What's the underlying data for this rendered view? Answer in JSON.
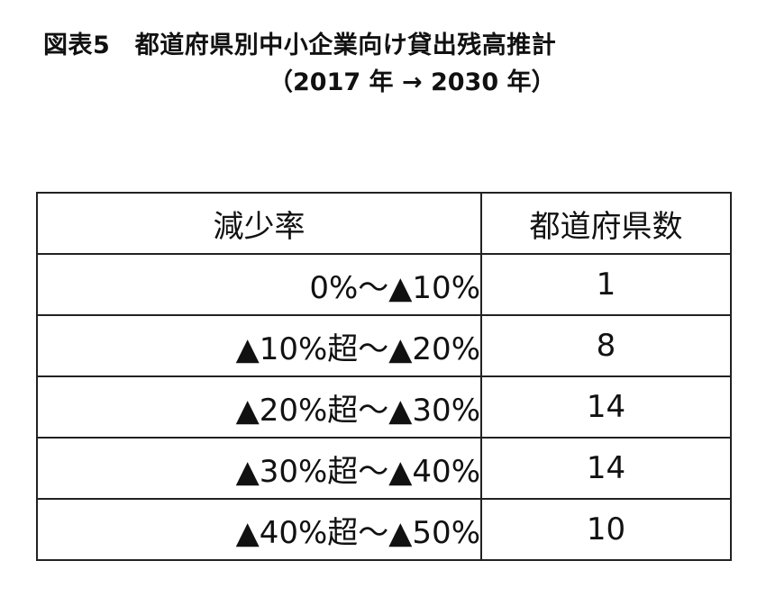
{
  "title": "図表5　都道府県別中小企業向け貸出残高推計",
  "subtitle": "（2017 年 → 2030 年）",
  "table": {
    "headers": [
      "減少率",
      "都道府県数"
    ],
    "rows": [
      {
        "range": "0%〜▲10%",
        "count": "1"
      },
      {
        "range": "▲10%超〜▲20%",
        "count": "8"
      },
      {
        "range": "▲20%超〜▲30%",
        "count": "14"
      },
      {
        "range": "▲30%超〜▲40%",
        "count": "14"
      },
      {
        "range": "▲40%超〜▲50%",
        "count": "10"
      }
    ]
  }
}
